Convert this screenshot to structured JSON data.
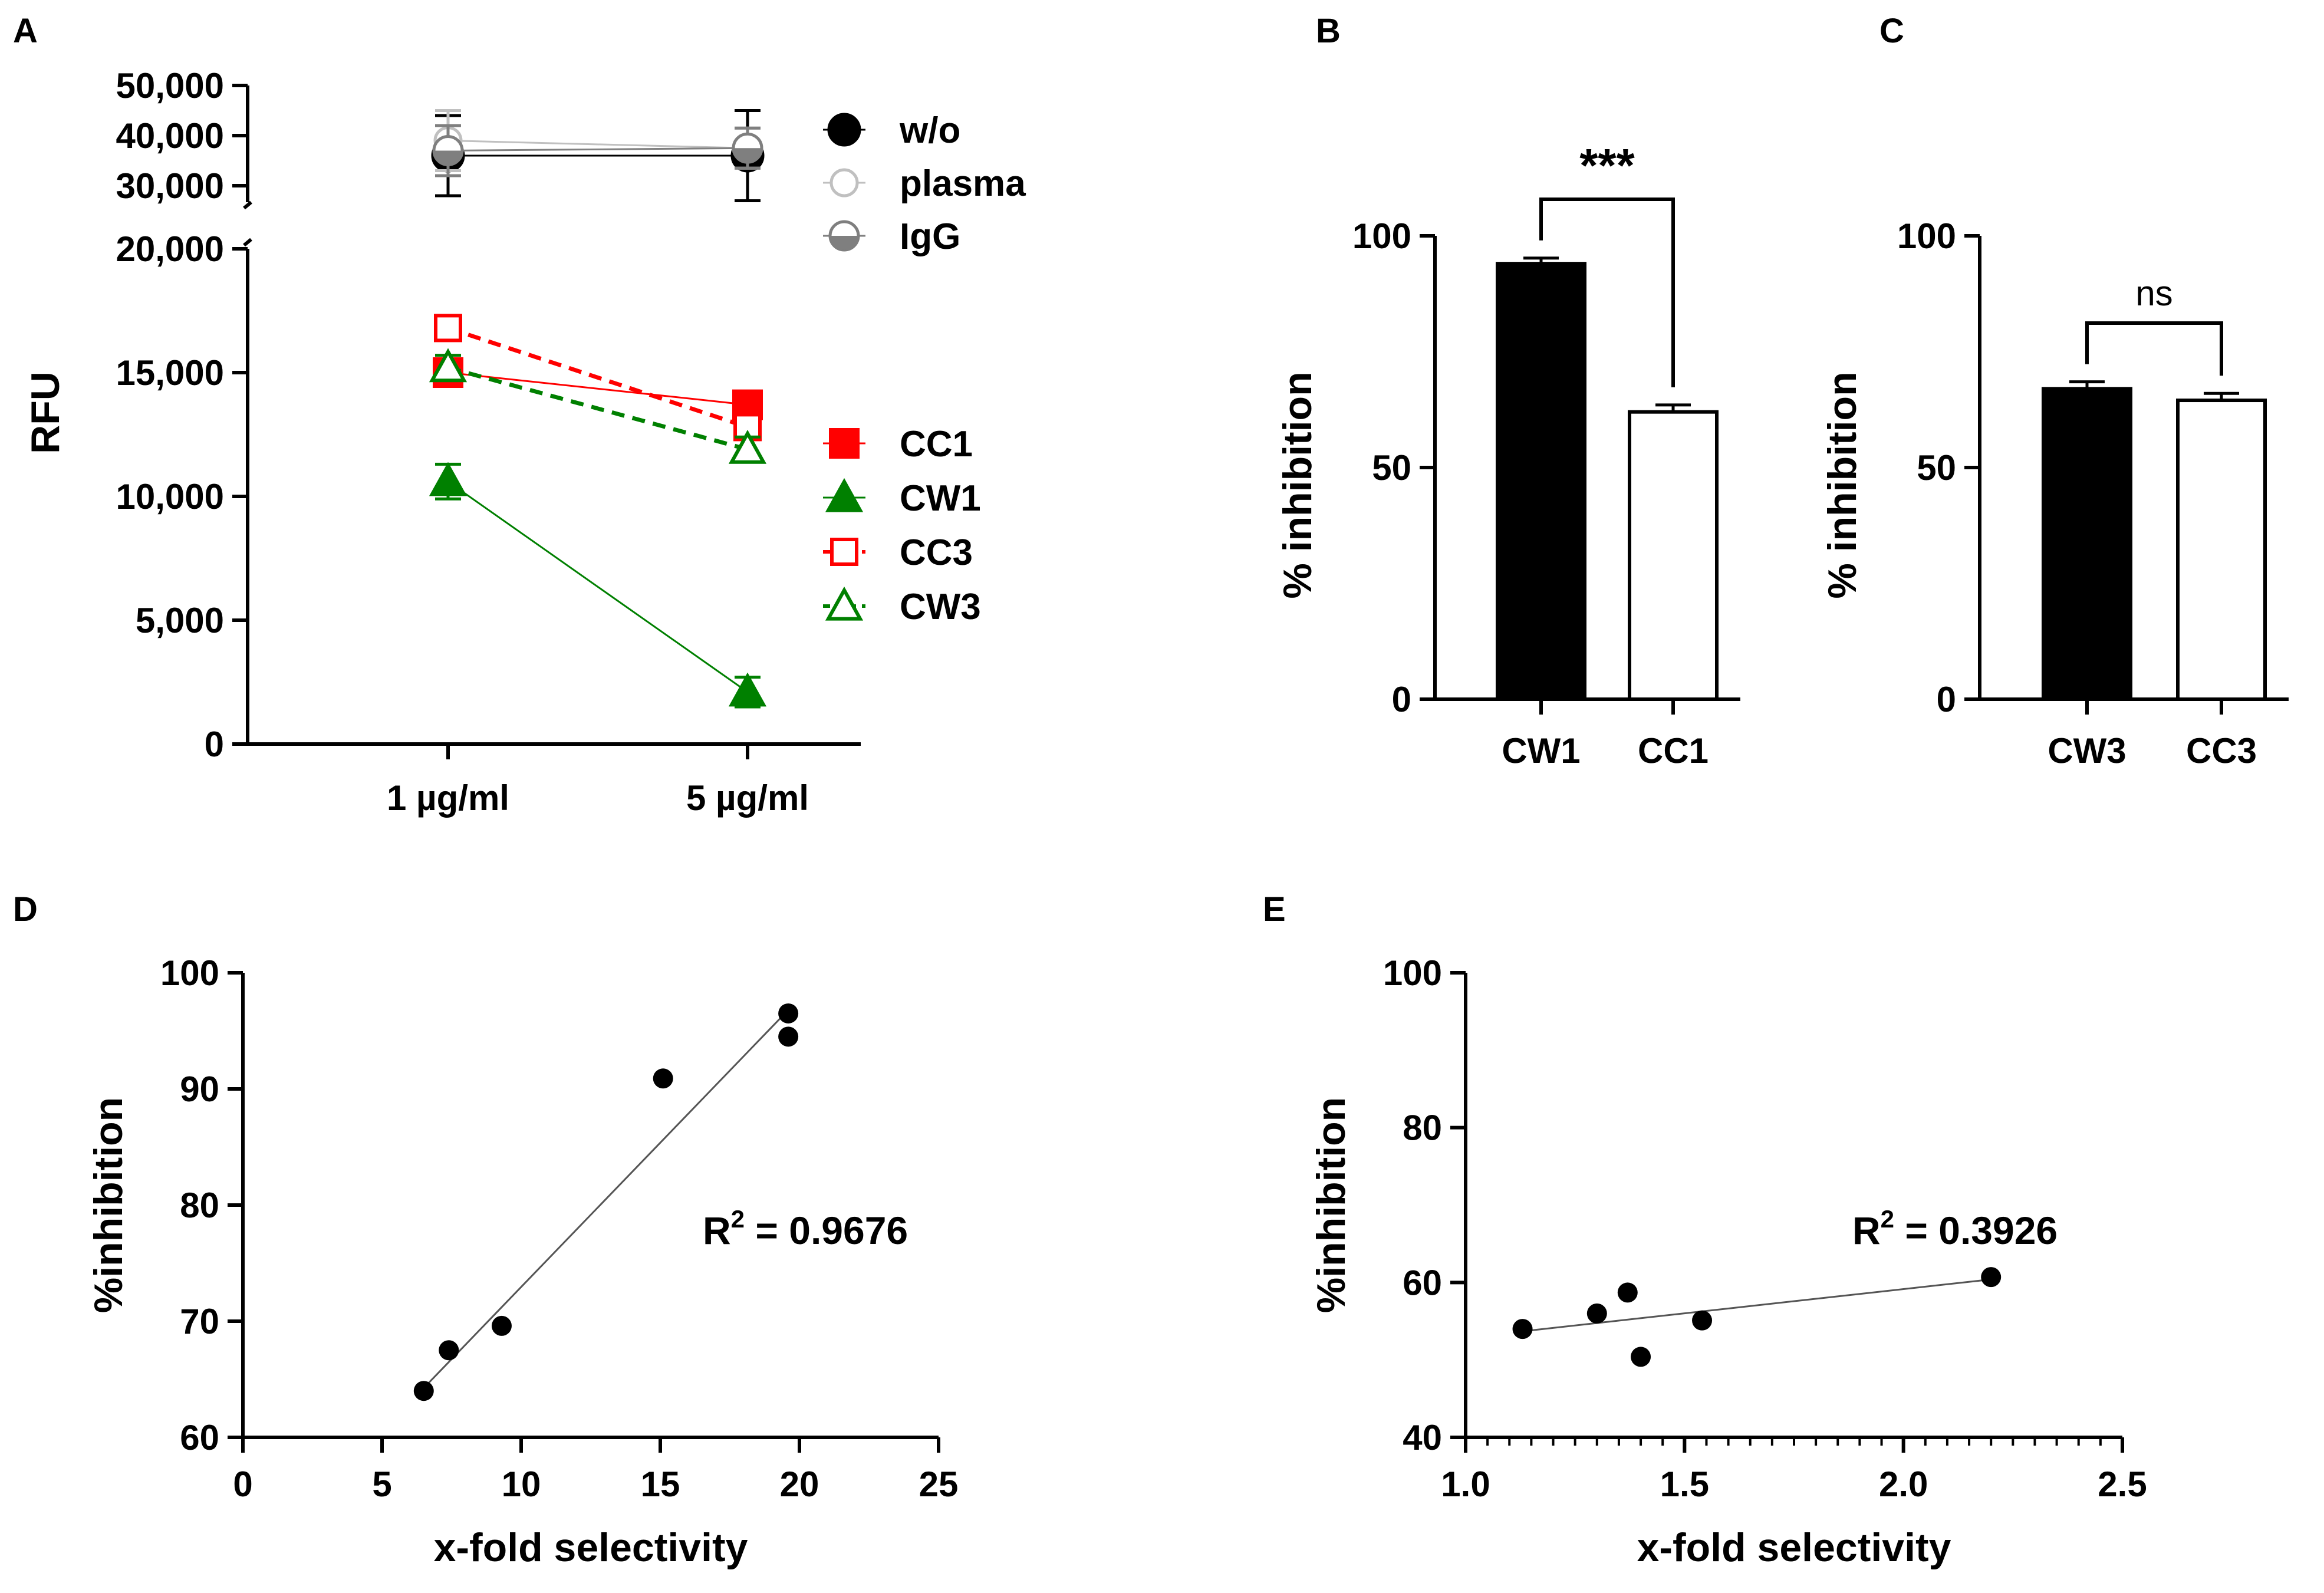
{
  "colors": {
    "black": "#000000",
    "red": "#ff0000",
    "green": "#008000",
    "grey_light": "#c0c0c0",
    "grey_mid": "#7f7f7f",
    "grey_dark": "#5a5a5a"
  },
  "panel_labels": [
    "A",
    "B",
    "C",
    "D",
    "E"
  ],
  "chart_data": [
    {
      "id": "A",
      "type": "line",
      "ylabel": "RFU",
      "categories": [
        "1 µg/ml",
        "5 µg/ml"
      ],
      "y_axis_lower": {
        "range": [
          0,
          20000
        ],
        "ticks": [
          0,
          5000,
          10000,
          15000,
          20000
        ],
        "tick_labels": [
          "0",
          "5,000",
          "10,000",
          "15,000",
          "20,000"
        ]
      },
      "y_axis_upper": {
        "range": [
          30000,
          50000
        ],
        "ticks": [
          30000,
          40000,
          50000
        ],
        "tick_labels": [
          "30,000",
          "40,000",
          "50,000"
        ]
      },
      "series": [
        {
          "name": "w/o",
          "values": [
            36000,
            36000
          ],
          "errors": [
            8000,
            9000
          ],
          "color": "#000000",
          "marker": "circle",
          "fill": "filled",
          "dashed": false
        },
        {
          "name": "plasma",
          "values": [
            39000,
            37500
          ],
          "errors": [
            6000,
            4000
          ],
          "color": "#c0c0c0",
          "marker": "circle",
          "fill": "open",
          "dashed": false
        },
        {
          "name": "IgG",
          "values": [
            37000,
            37500
          ],
          "errors": [
            5000,
            4000
          ],
          "color": "#7f7f7f",
          "marker": "circle",
          "fill": "half",
          "dashed": false
        },
        {
          "name": "CC1",
          "values": [
            15000,
            13700
          ],
          "errors": [
            400,
            300
          ],
          "color": "#ff0000",
          "marker": "square",
          "fill": "filled",
          "dashed": false
        },
        {
          "name": "CW1",
          "values": [
            10600,
            2100
          ],
          "errors": [
            700,
            600
          ],
          "color": "#008000",
          "marker": "triangle",
          "fill": "filled",
          "dashed": false
        },
        {
          "name": "CC3",
          "values": [
            16800,
            12800
          ],
          "errors": [
            500,
            400
          ],
          "color": "#ff0000",
          "marker": "square",
          "fill": "open",
          "dashed": true
        },
        {
          "name": "CW3",
          "values": [
            15200,
            11900
          ],
          "errors": [
            500,
            500
          ],
          "color": "#008000",
          "marker": "triangle",
          "fill": "open",
          "dashed": true
        }
      ]
    },
    {
      "id": "B",
      "type": "bar",
      "ylabel": "% inhibition",
      "categories": [
        "CW1",
        "CC1"
      ],
      "values": [
        94,
        62
      ],
      "errors": [
        1.2,
        1.5
      ],
      "fills": [
        "#000000",
        "#ffffff"
      ],
      "ylim": [
        0,
        100
      ],
      "ticks": [
        0,
        50,
        100
      ],
      "tick_labels": [
        "0",
        "50",
        "100"
      ],
      "significance": "***"
    },
    {
      "id": "C",
      "type": "bar",
      "ylabel": "% inhibition",
      "categories": [
        "CW3",
        "CC3"
      ],
      "values": [
        67,
        64.5
      ],
      "errors": [
        1.5,
        1.5
      ],
      "fills": [
        "#000000",
        "#ffffff"
      ],
      "ylim": [
        0,
        100
      ],
      "ticks": [
        0,
        50,
        100
      ],
      "tick_labels": [
        "0",
        "50",
        "100"
      ],
      "significance": "ns"
    },
    {
      "id": "D",
      "type": "scatter",
      "xlabel": "x-fold selectivity",
      "ylabel": "%inhibition",
      "xlim": [
        0,
        25
      ],
      "ylim": [
        60,
        100
      ],
      "xticks": [
        0,
        5,
        10,
        15,
        20,
        25
      ],
      "xtick_labels": [
        "0",
        "5",
        "10",
        "15",
        "20",
        "25"
      ],
      "yticks": [
        60,
        70,
        80,
        90,
        100
      ],
      "ytick_labels": [
        "60",
        "70",
        "80",
        "90",
        "100"
      ],
      "points": [
        [
          6.5,
          64
        ],
        [
          7.4,
          67.5
        ],
        [
          9.3,
          69.6
        ],
        [
          15.1,
          90.9
        ],
        [
          19.6,
          96.5
        ],
        [
          19.6,
          94.5
        ]
      ],
      "fit_line": [
        [
          6.6,
          64.5
        ],
        [
          19.6,
          96.8
        ]
      ],
      "r2_label": "R",
      "r2_sup": "2",
      "r2_value": " = 0.9676"
    },
    {
      "id": "E",
      "type": "scatter",
      "xlabel": "x-fold selectivity",
      "ylabel": "%inhibition",
      "xlim": [
        1.0,
        2.5
      ],
      "ylim": [
        40,
        100
      ],
      "xticks": [
        1.0,
        1.5,
        2.0,
        2.5
      ],
      "xtick_labels": [
        "1.0",
        "1.5",
        "2.0",
        "2.5"
      ],
      "yticks": [
        40,
        60,
        80,
        100
      ],
      "ytick_labels": [
        "40",
        "60",
        "80",
        "100"
      ],
      "points": [
        [
          1.13,
          54
        ],
        [
          1.3,
          56
        ],
        [
          1.37,
          58.7
        ],
        [
          1.4,
          50.4
        ],
        [
          1.54,
          55.1
        ],
        [
          2.2,
          60.7
        ]
      ],
      "fit_line": [
        [
          1.13,
          53.7
        ],
        [
          2.2,
          60.4
        ]
      ],
      "r2_label": "R",
      "r2_sup": "2",
      "r2_value": " = 0.3926"
    }
  ]
}
